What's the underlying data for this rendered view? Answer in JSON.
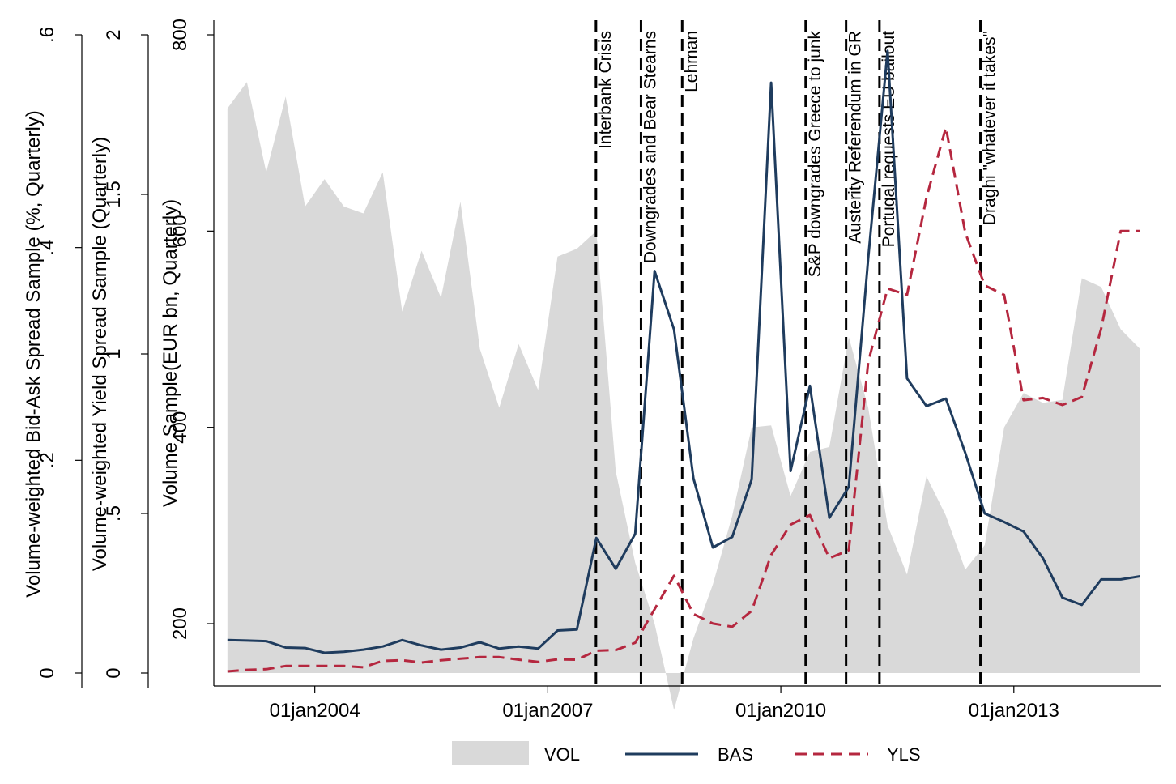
{
  "chart_data": {
    "type": "area+line",
    "title": "",
    "xlabel": "",
    "x_ticks": [
      {
        "label": "01jan2004",
        "t": 2004.0
      },
      {
        "label": "01jan2007",
        "t": 2007.0
      },
      {
        "label": "01jan2010",
        "t": 2010.0
      },
      {
        "label": "01jan2013",
        "t": 2013.0
      }
    ],
    "xlim": [
      2002.7,
      2014.9
    ],
    "axes": {
      "volume": {
        "label": "Volume Sample(EUR bn, Quarterly)",
        "ylim": [
          110,
          800
        ],
        "ticks": [
          200,
          400,
          600,
          800
        ],
        "tick_labels": [
          "200",
          "400",
          "600",
          "800"
        ]
      },
      "yield": {
        "label": "Volume-weighted Yield Spread Sample (Quarterly)",
        "ylim": [
          0,
          2
        ],
        "ticks": [
          0,
          0.5,
          1,
          1.5,
          2
        ],
        "tick_labels": [
          "0",
          ".5",
          "1",
          "1.5",
          "2"
        ]
      },
      "bidask": {
        "label": "Volume-weighted Bid-Ask Spread Sample (%, Quarterly)",
        "ylim": [
          0,
          0.6
        ],
        "ticks": [
          0,
          0.2,
          0.4,
          0.6
        ],
        "tick_labels": [
          "0",
          ".2",
          ".4",
          ".6"
        ]
      }
    },
    "events": [
      {
        "label": "Interbank Crisis",
        "t": 2007.62
      },
      {
        "label": "Downgrades and Bear Stearns",
        "t": 2008.2
      },
      {
        "label": "Lehman",
        "t": 2008.73
      },
      {
        "label": "S&P downgrades Greece to junk",
        "t": 2010.32
      },
      {
        "label": "Austerity Referendum in GR",
        "t": 2010.84
      },
      {
        "label": "Portugal requests EU bailout",
        "t": 2011.27
      },
      {
        "label": "Draghi \"whatever it takes\"",
        "t": 2012.57
      }
    ],
    "legend_position": "bottom",
    "series": [
      {
        "name": "VOL",
        "axis": "volume",
        "style": "area",
        "color": "#d9d9d9",
        "t": [
          2002.875,
          2003.125,
          2003.375,
          2003.625,
          2003.875,
          2004.125,
          2004.375,
          2004.625,
          2004.875,
          2005.125,
          2005.375,
          2005.625,
          2005.875,
          2006.125,
          2006.375,
          2006.625,
          2006.875,
          2007.125,
          2007.375,
          2007.625,
          2007.875,
          2008.125,
          2008.375,
          2008.625,
          2008.875,
          2009.125,
          2009.375,
          2009.625,
          2009.875,
          2010.125,
          2010.375,
          2010.625,
          2010.875,
          2011.125,
          2011.375,
          2011.625,
          2011.875,
          2012.125,
          2012.375,
          2012.625,
          2012.875,
          2013.125,
          2013.375,
          2013.625,
          2013.875,
          2014.125,
          2014.375,
          2014.625
        ],
        "values": [
          725,
          752,
          660,
          737,
          625,
          653,
          625,
          618,
          660,
          518,
          580,
          532,
          630,
          480,
          420,
          485,
          438,
          574,
          582,
          600,
          355,
          262,
          200,
          112,
          185,
          240,
          310,
          400,
          402,
          330,
          375,
          380,
          492,
          420,
          300,
          250,
          350,
          310,
          255,
          280,
          400,
          435,
          425,
          428,
          552,
          543,
          500,
          480
        ]
      },
      {
        "name": "BAS",
        "axis": "bidask",
        "style": "solid",
        "color": "#1f3c5e",
        "t": [
          2002.875,
          2003.125,
          2003.375,
          2003.625,
          2003.875,
          2004.125,
          2004.375,
          2004.625,
          2004.875,
          2005.125,
          2005.375,
          2005.625,
          2005.875,
          2006.125,
          2006.375,
          2006.625,
          2006.875,
          2007.125,
          2007.375,
          2007.625,
          2007.875,
          2008.125,
          2008.375,
          2008.625,
          2008.875,
          2009.125,
          2009.375,
          2009.625,
          2009.875,
          2010.125,
          2010.375,
          2010.625,
          2010.875,
          2011.125,
          2011.375,
          2011.625,
          2011.875,
          2012.125,
          2012.375,
          2012.625,
          2012.875,
          2013.125,
          2013.375,
          2013.625,
          2013.875,
          2014.125,
          2014.375,
          2014.625
        ],
        "values": [
          0.031,
          0.0305,
          0.03,
          0.024,
          0.0235,
          0.019,
          0.02,
          0.022,
          0.025,
          0.031,
          0.026,
          0.022,
          0.024,
          0.029,
          0.023,
          0.025,
          0.023,
          0.04,
          0.041,
          0.127,
          0.098,
          0.131,
          0.378,
          0.323,
          0.183,
          0.118,
          0.128,
          0.182,
          0.555,
          0.19,
          0.27,
          0.146,
          0.175,
          0.39,
          0.585,
          0.277,
          0.251,
          0.258,
          0.207,
          0.15,
          0.142,
          0.133,
          0.108,
          0.071,
          0.064,
          0.088,
          0.088,
          0.091
        ]
      },
      {
        "name": "YLS",
        "axis": "yield",
        "style": "dashed",
        "color": "#b5273f",
        "t": [
          2002.875,
          2003.125,
          2003.375,
          2003.625,
          2003.875,
          2004.125,
          2004.375,
          2004.625,
          2004.875,
          2005.125,
          2005.375,
          2005.625,
          2005.875,
          2006.125,
          2006.375,
          2006.625,
          2006.875,
          2007.125,
          2007.375,
          2007.625,
          2007.875,
          2008.125,
          2008.375,
          2008.625,
          2008.875,
          2009.125,
          2009.375,
          2009.625,
          2009.875,
          2010.125,
          2010.375,
          2010.625,
          2010.875,
          2011.125,
          2011.375,
          2011.625,
          2011.875,
          2012.125,
          2012.375,
          2012.625,
          2012.875,
          2013.125,
          2013.375,
          2013.625,
          2013.875,
          2014.125,
          2014.375,
          2014.625
        ],
        "values": [
          0.005,
          0.01,
          0.012,
          0.022,
          0.022,
          0.022,
          0.022,
          0.018,
          0.038,
          0.04,
          0.033,
          0.04,
          0.045,
          0.05,
          0.05,
          0.042,
          0.035,
          0.043,
          0.042,
          0.07,
          0.072,
          0.095,
          0.2,
          0.305,
          0.185,
          0.155,
          0.145,
          0.195,
          0.37,
          0.465,
          0.495,
          0.36,
          0.385,
          0.975,
          1.205,
          1.185,
          1.49,
          1.71,
          1.38,
          1.215,
          1.185,
          0.855,
          0.862,
          0.84,
          0.865,
          1.08,
          1.385,
          1.385
        ]
      }
    ]
  }
}
